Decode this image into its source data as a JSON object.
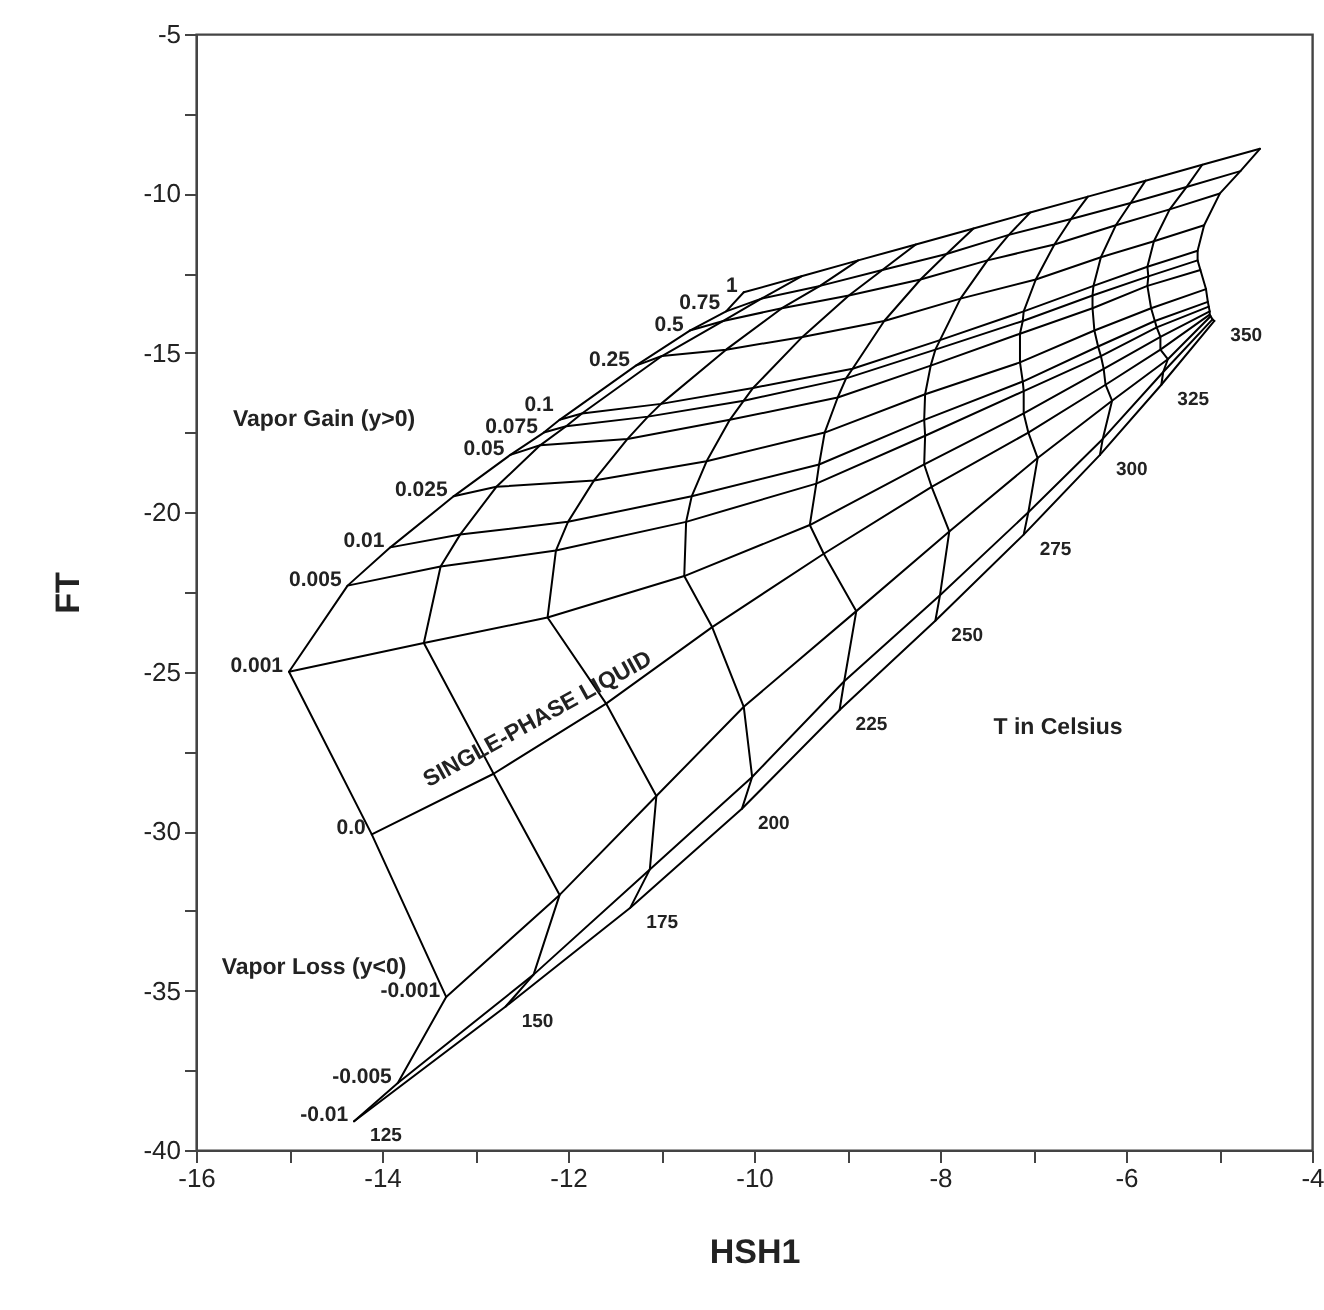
{
  "chart_data": {
    "type": "line",
    "xlabel": "HSH1",
    "ylabel": "FT",
    "xlim": [
      -16,
      -4
    ],
    "ylim": [
      -40,
      -5
    ],
    "xticks": [
      -16,
      {
        "value": -15,
        "label": null
      },
      -14,
      {
        "value": -13,
        "label": null
      },
      -12,
      {
        "value": -11,
        "label": null
      },
      -10,
      {
        "value": -9,
        "label": null
      },
      -8,
      {
        "value": -7,
        "label": null
      },
      -6,
      {
        "value": -5,
        "label": null
      },
      -4
    ],
    "yticks": [
      -40,
      {
        "value": -37.5,
        "label": null
      },
      -35,
      {
        "value": -32.5,
        "label": null
      },
      -30,
      {
        "value": -27.5,
        "label": null
      },
      -25,
      {
        "value": -22.5,
        "label": null
      },
      -20,
      {
        "value": -17.5,
        "label": null
      },
      -15,
      {
        "value": -12.5,
        "label": null
      },
      -10,
      {
        "value": -7.5,
        "label": null
      },
      -5
    ],
    "series": [
      {
        "name": "-0.01",
        "color": "#000000",
        "x": [
          -14.3,
          -12.67,
          -11.33,
          -10.13,
          -9.08,
          -8.05,
          -7.1,
          -6.28,
          -5.62,
          -5.05
        ],
        "values": [
          -39.1,
          -35.5,
          -32.4,
          -29.3,
          -26.2,
          -23.4,
          -20.7,
          -18.2,
          -16.0,
          -14.0
        ]
      },
      {
        "name": "-0.005",
        "color": "#000000",
        "x": [
          -13.83,
          -12.37,
          -11.12,
          -10.02,
          -9.03,
          -8.0,
          -7.05,
          -6.25,
          -5.6,
          -5.07
        ],
        "values": [
          -37.9,
          -34.5,
          -31.2,
          -28.3,
          -25.3,
          -22.6,
          -20.0,
          -17.7,
          -15.6,
          -13.95
        ]
      },
      {
        "name": "-0.001",
        "color": "#000000",
        "x": [
          -13.31,
          -12.09,
          -11.05,
          -10.11,
          -8.9,
          -7.9,
          -6.95,
          -6.15,
          -5.55,
          -5.09
        ],
        "values": [
          -35.2,
          -32.0,
          -28.9,
          -26.1,
          -23.1,
          -20.6,
          -18.3,
          -16.5,
          -15.2,
          -13.85
        ]
      },
      {
        "name": "0.0",
        "color": "#000000",
        "x": [
          -14.11,
          -12.8,
          -11.59,
          -10.45,
          -9.25,
          -8.09,
          -7.05,
          -6.22,
          -5.63,
          -5.1
        ],
        "values": [
          -30.1,
          -28.2,
          -26.0,
          -23.6,
          -21.3,
          -19.2,
          -17.5,
          -16.0,
          -14.9,
          -13.8
        ]
      },
      {
        "name": "0.001",
        "color": "#000000",
        "x": [
          -15.0,
          -13.55,
          -12.22,
          -10.75,
          -9.4,
          -8.17,
          -7.1,
          -6.24,
          -5.63,
          -5.1
        ],
        "values": [
          -25.0,
          -24.1,
          -23.3,
          -22.0,
          -20.4,
          -18.5,
          -16.9,
          -15.5,
          -14.5,
          -13.7
        ]
      },
      {
        "name": "0.005",
        "color": "#000000",
        "x": [
          -14.37,
          -13.37,
          -12.13,
          -10.73,
          -9.33,
          -8.16,
          -7.1,
          -6.27,
          -5.67,
          -5.11
        ],
        "values": [
          -22.3,
          -21.7,
          -21.2,
          -20.3,
          -19.1,
          -17.6,
          -16.2,
          -15.1,
          -14.2,
          -13.55
        ]
      },
      {
        "name": "0.01",
        "color": "#000000",
        "x": [
          -13.91,
          -13.16,
          -12.0,
          -10.67,
          -9.3,
          -8.17,
          -7.11,
          -6.3,
          -5.69,
          -5.12
        ],
        "values": [
          -21.1,
          -20.7,
          -20.3,
          -19.5,
          -18.5,
          -17.1,
          -15.9,
          -14.8,
          -14.0,
          -13.4
        ]
      },
      {
        "name": "0.025",
        "color": "#000000",
        "x": [
          -13.23,
          -12.77,
          -11.72,
          -10.51,
          -9.24,
          -8.16,
          -7.14,
          -6.34,
          -5.73,
          -5.14
        ],
        "values": [
          -19.5,
          -19.2,
          -19.0,
          -18.4,
          -17.5,
          -16.3,
          -15.3,
          -14.3,
          -13.6,
          -13.0
        ]
      },
      {
        "name": "0.05",
        "color": "#000000",
        "x": [
          -12.62,
          -12.3,
          -11.36,
          -10.26,
          -9.1,
          -8.1,
          -7.14,
          -6.36,
          -5.77,
          -5.2
        ],
        "values": [
          -18.2,
          -17.9,
          -17.7,
          -17.1,
          -16.4,
          -15.4,
          -14.4,
          -13.6,
          -12.9,
          -12.4
        ]
      },
      {
        "name": "0.075",
        "color": "#000000",
        "x": [
          -12.26,
          -12.02,
          -11.14,
          -10.11,
          -9.01,
          -8.05,
          -7.11,
          -6.36,
          -5.76,
          -5.23
        ],
        "values": [
          -17.5,
          -17.3,
          -17.0,
          -16.5,
          -15.8,
          -14.9,
          -14.0,
          -13.2,
          -12.6,
          -12.1
        ]
      },
      {
        "name": "0.1",
        "color": "#000000",
        "x": [
          -12.09,
          -11.85,
          -11.0,
          -10.01,
          -8.94,
          -8.0,
          -7.1,
          -6.35,
          -5.77,
          -5.23
        ],
        "values": [
          -17.1,
          -16.9,
          -16.6,
          -16.1,
          -15.5,
          -14.6,
          -13.7,
          -12.9,
          -12.3,
          -11.8
        ]
      },
      {
        "name": "0.25",
        "color": "#000000",
        "x": [
          -11.27,
          -10.99,
          -10.3,
          -9.48,
          -8.6,
          -7.78,
          -6.97,
          -6.27,
          -5.7,
          -5.16
        ],
        "values": [
          -15.4,
          -15.1,
          -14.9,
          -14.5,
          -14.0,
          -13.3,
          -12.7,
          -12.0,
          -11.5,
          -11.0
        ]
      },
      {
        "name": "0.5",
        "color": "#000000",
        "x": [
          -10.69,
          -10.33,
          -9.7,
          -8.98,
          -8.21,
          -7.49,
          -6.77,
          -6.11,
          -5.53,
          -4.99
        ],
        "values": [
          -14.3,
          -14.0,
          -13.6,
          -13.2,
          -12.7,
          -12.1,
          -11.6,
          -11.0,
          -10.5,
          -10.0
        ]
      },
      {
        "name": "0.75",
        "color": "#000000",
        "x": [
          -10.3,
          -9.92,
          -9.29,
          -8.62,
          -7.93,
          -7.26,
          -6.59,
          -5.95,
          -5.35,
          -4.77
        ],
        "values": [
          -13.7,
          -13.3,
          -12.9,
          -12.4,
          -11.9,
          -11.3,
          -10.8,
          -10.3,
          -9.8,
          -9.3
        ]
      },
      {
        "name": "1",
        "color": "#000000",
        "x": [
          -10.11,
          -9.49,
          -8.88,
          -8.26,
          -7.64,
          -7.03,
          -6.41,
          -5.79,
          -5.18,
          -4.56
        ],
        "values": [
          -13.1,
          -12.6,
          -12.1,
          -11.6,
          -11.1,
          -10.6,
          -10.1,
          -9.6,
          -9.1,
          -8.6
        ]
      },
      {
        "name": "125",
        "color": "#000000",
        "x": [
          -14.3,
          -13.83,
          -13.31,
          -14.11,
          -15.0,
          -14.37,
          -13.91,
          -13.23,
          -12.62,
          -12.26,
          -12.09,
          -11.27,
          -10.69,
          -10.3,
          -10.11
        ],
        "values": [
          -39.1,
          -37.9,
          -35.2,
          -30.1,
          -25.0,
          -22.3,
          -21.1,
          -19.5,
          -18.2,
          -17.5,
          -17.1,
          -15.4,
          -14.3,
          -13.7,
          -13.1
        ]
      },
      {
        "name": "150",
        "color": "#000000",
        "x": [
          -12.67,
          -12.37,
          -12.09,
          -12.8,
          -13.55,
          -13.37,
          -13.16,
          -12.77,
          -12.3,
          -12.02,
          -11.85,
          -10.99,
          -10.33,
          -9.92,
          -9.49
        ],
        "values": [
          -35.5,
          -34.5,
          -32.0,
          -28.2,
          -24.1,
          -21.7,
          -20.7,
          -19.2,
          -17.9,
          -17.3,
          -16.9,
          -15.1,
          -14.0,
          -13.3,
          -12.6
        ]
      },
      {
        "name": "175",
        "color": "#000000",
        "x": [
          -11.33,
          -11.12,
          -11.05,
          -11.59,
          -12.22,
          -12.13,
          -12.0,
          -11.72,
          -11.36,
          -11.14,
          -11.0,
          -10.3,
          -9.7,
          -9.29,
          -8.88
        ],
        "values": [
          -32.4,
          -31.2,
          -28.9,
          -26.0,
          -23.3,
          -21.2,
          -20.3,
          -19.0,
          -17.7,
          -17.0,
          -16.6,
          -14.9,
          -13.6,
          -12.9,
          -12.1
        ]
      },
      {
        "name": "200",
        "color": "#000000",
        "x": [
          -10.13,
          -10.02,
          -10.11,
          -10.45,
          -10.75,
          -10.73,
          -10.67,
          -10.51,
          -10.26,
          -10.11,
          -10.01,
          -9.48,
          -8.98,
          -8.62,
          -8.26
        ],
        "values": [
          -29.3,
          -28.3,
          -26.1,
          -23.6,
          -22.0,
          -20.3,
          -19.5,
          -18.4,
          -17.1,
          -16.5,
          -16.1,
          -14.5,
          -13.2,
          -12.4,
          -11.6
        ]
      },
      {
        "name": "225",
        "color": "#000000",
        "x": [
          -9.08,
          -9.03,
          -8.9,
          -9.25,
          -9.4,
          -9.33,
          -9.3,
          -9.24,
          -9.1,
          -9.01,
          -8.94,
          -8.6,
          -8.21,
          -7.93,
          -7.64
        ],
        "values": [
          -26.2,
          -25.3,
          -23.1,
          -21.3,
          -20.4,
          -19.1,
          -18.5,
          -17.5,
          -16.4,
          -15.8,
          -15.5,
          -14.0,
          -12.7,
          -11.9,
          -11.1
        ]
      },
      {
        "name": "250",
        "color": "#000000",
        "x": [
          -8.05,
          -8.0,
          -7.9,
          -8.09,
          -8.17,
          -8.16,
          -8.17,
          -8.16,
          -8.1,
          -8.05,
          -8.0,
          -7.78,
          -7.49,
          -7.26,
          -7.03
        ],
        "values": [
          -23.4,
          -22.6,
          -20.6,
          -19.2,
          -18.5,
          -17.6,
          -17.1,
          -16.3,
          -15.4,
          -14.9,
          -14.6,
          -13.3,
          -12.1,
          -11.3,
          -10.6
        ]
      },
      {
        "name": "275",
        "color": "#000000",
        "x": [
          -7.1,
          -7.05,
          -6.95,
          -7.05,
          -7.1,
          -7.1,
          -7.11,
          -7.14,
          -7.14,
          -7.11,
          -7.1,
          -6.97,
          -6.77,
          -6.59,
          -6.41
        ],
        "values": [
          -20.7,
          -20.0,
          -18.3,
          -17.5,
          -16.9,
          -16.2,
          -15.9,
          -15.3,
          -14.4,
          -14.0,
          -13.7,
          -12.7,
          -11.6,
          -10.8,
          -10.1
        ]
      },
      {
        "name": "300",
        "color": "#000000",
        "x": [
          -6.28,
          -6.25,
          -6.15,
          -6.22,
          -6.24,
          -6.27,
          -6.3,
          -6.34,
          -6.36,
          -6.36,
          -6.35,
          -6.27,
          -6.11,
          -5.95,
          -5.79
        ],
        "values": [
          -18.2,
          -17.7,
          -16.5,
          -16.0,
          -15.5,
          -15.1,
          -14.8,
          -14.3,
          -13.6,
          -13.2,
          -12.9,
          -12.0,
          -11.0,
          -10.3,
          -9.6
        ]
      },
      {
        "name": "325",
        "color": "#000000",
        "x": [
          -5.62,
          -5.6,
          -5.55,
          -5.63,
          -5.63,
          -5.67,
          -5.69,
          -5.73,
          -5.77,
          -5.76,
          -5.77,
          -5.7,
          -5.53,
          -5.35,
          -5.18
        ],
        "values": [
          -16.0,
          -15.6,
          -15.2,
          -14.9,
          -14.5,
          -14.2,
          -14.0,
          -13.6,
          -12.9,
          -12.6,
          -12.3,
          -11.5,
          -10.5,
          -9.8,
          -9.1
        ]
      },
      {
        "name": "350",
        "color": "#000000",
        "x": [
          -5.05,
          -5.07,
          -5.09,
          -5.1,
          -5.1,
          -5.11,
          -5.12,
          -5.14,
          -5.2,
          -5.23,
          -5.23,
          -5.16,
          -4.99,
          -4.77,
          -4.56
        ],
        "values": [
          -14.0,
          -13.95,
          -13.85,
          -13.8,
          -13.7,
          -13.55,
          -13.4,
          -13.0,
          -12.4,
          -12.1,
          -11.8,
          -11.0,
          -10.0,
          -9.3,
          -8.6
        ]
      }
    ],
    "annotations": [
      "Vapor Gain (y>0)",
      "Vapor Loss (y<0)",
      "T in Celsius",
      "SINGLE-PHASE LIQUID"
    ]
  }
}
